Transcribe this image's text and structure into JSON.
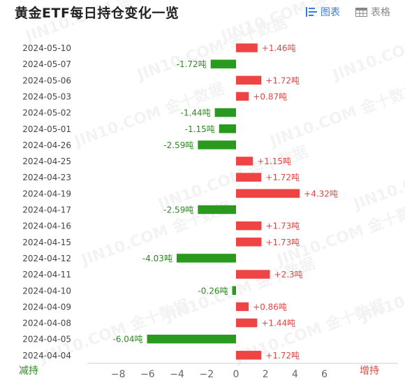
{
  "header": {
    "title": "黄金ETF每日持仓变化一览",
    "tabs": [
      {
        "label": "图表",
        "active": true,
        "icon": "bar-chart-list-icon"
      },
      {
        "label": "表格",
        "active": false,
        "icon": "table-grid-icon"
      }
    ]
  },
  "legend": {
    "decrease": "减持",
    "increase": "增持"
  },
  "colors": {
    "increase": "#ee4444",
    "decrease": "#2a9a1e",
    "increase_text": "#e04646",
    "decrease_text": "#2b8a1f",
    "accent": "#3a7bd5"
  },
  "chart_data": {
    "type": "bar",
    "orientation": "horizontal",
    "title": "黄金ETF每日持仓变化一览",
    "value_suffix": "吨",
    "xlim": [
      -9,
      8
    ],
    "x_ticks": [
      -8,
      -6,
      -4,
      -2,
      0,
      2,
      4,
      6
    ],
    "grid": false,
    "categories": [
      "2024-05-10",
      "2024-05-07",
      "2024-05-06",
      "2024-05-03",
      "2024-05-02",
      "2024-05-01",
      "2024-04-26",
      "2024-04-25",
      "2024-04-23",
      "2024-04-19",
      "2024-04-17",
      "2024-04-16",
      "2024-04-15",
      "2024-04-12",
      "2024-04-11",
      "2024-04-10",
      "2024-04-09",
      "2024-04-08",
      "2024-04-05",
      "2024-04-04"
    ],
    "values": [
      1.46,
      -1.72,
      1.72,
      0.87,
      -1.44,
      -1.15,
      -2.59,
      1.15,
      1.72,
      4.32,
      -2.59,
      1.73,
      1.73,
      -4.03,
      2.3,
      -0.26,
      0.86,
      1.44,
      -6.04,
      1.72
    ],
    "labels": [
      "+1.46吨",
      "-1.72吨",
      "+1.72吨",
      "+0.87吨",
      "-1.44吨",
      "-1.15吨",
      "-2.59吨",
      "+1.15吨",
      "+1.72吨",
      "+4.32吨",
      "-2.59吨",
      "+1.73吨",
      "+1.73吨",
      "-4.03吨",
      "+2.3吨",
      "-0.26吨",
      "+0.86吨",
      "+1.44吨",
      "-6.04吨",
      "+1.72吨"
    ],
    "watermark": "JIN10.COM 金十数据"
  }
}
